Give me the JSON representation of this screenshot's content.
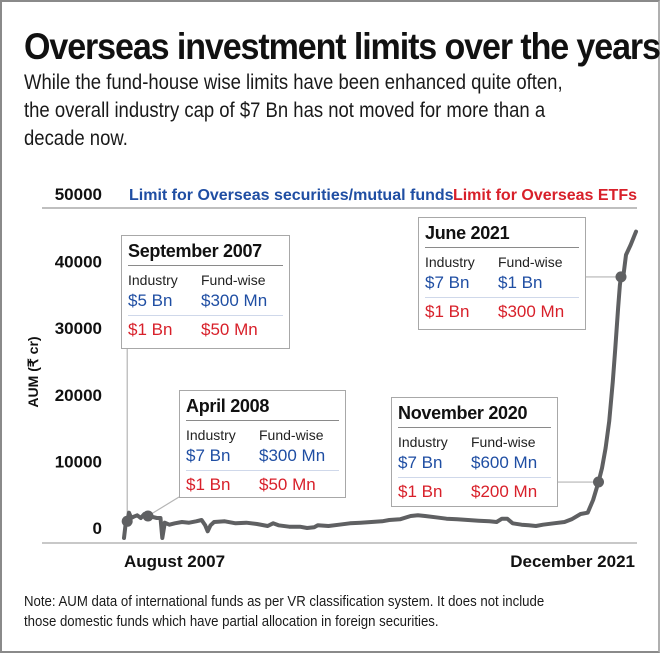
{
  "header": {
    "title": "Overseas investment limits over the years",
    "subtitle_lines": [
      "While the fund-house wise limits have been enhanced quite often,",
      "the overall industry cap of $7 Bn has not moved for more than a",
      "decade now."
    ]
  },
  "legend": {
    "mutual_funds": "Limit for Overseas securities/mutual funds",
    "etfs": "Limit for Overseas ETFs"
  },
  "colors": {
    "mutual_funds": "#1f4ea3",
    "etfs": "#d8202a",
    "series": "#5f6062"
  },
  "callouts": [
    {
      "title": "September 2007",
      "col1": "Industry",
      "col2": "Fund-wise",
      "mf_industry": "$5 Bn",
      "mf_fund": "$300 Mn",
      "etf_industry": "$1 Bn",
      "etf_fund": "$50 Mn"
    },
    {
      "title": "April 2008",
      "col1": "Industry",
      "col2": "Fund-wise",
      "mf_industry": "$7 Bn",
      "mf_fund": "$300 Mn",
      "etf_industry": "$1 Bn",
      "etf_fund": "$50 Mn"
    },
    {
      "title": "June 2021",
      "col1": "Industry",
      "col2": "Fund-wise",
      "mf_industry": "$7 Bn",
      "mf_fund": "$1 Bn",
      "etf_industry": "$1 Bn",
      "etf_fund": "$300 Mn"
    },
    {
      "title": "November 2020",
      "col1": "Industry",
      "col2": "Fund-wise",
      "mf_industry": "$7 Bn",
      "mf_fund": "$600 Mn",
      "etf_industry": "$1 Bn",
      "etf_fund": "$200 Mn"
    }
  ],
  "note_lines": [
    "Note: AUM data of international funds as per VR classification system. It does not include",
    "those domestic funds which have partial allocation in foreign securities."
  ],
  "chart_data": {
    "type": "line",
    "title": "Overseas investment limits over the years",
    "xlabel": "",
    "ylabel": "AUM (₹ cr)",
    "x_start_label": "August 2007",
    "x_end_label": "December 2021",
    "x_range": [
      "2007-08",
      "2021-12"
    ],
    "ylim": [
      0,
      50000
    ],
    "yticks": [
      0,
      10000,
      20000,
      30000,
      40000,
      50000
    ],
    "ytick_labels": [
      "0",
      "10000",
      "20000",
      "30000",
      "40000",
      "50000"
    ],
    "grid": false,
    "series": [
      {
        "name": "AUM of international funds",
        "points": [
          [
            2007.58,
            -1500
          ],
          [
            2007.62,
            300
          ],
          [
            2007.67,
            1000
          ],
          [
            2007.72,
            2300
          ],
          [
            2007.78,
            1500
          ],
          [
            2007.85,
            1700
          ],
          [
            2007.95,
            1900
          ],
          [
            2008.05,
            1500
          ],
          [
            2008.15,
            2100
          ],
          [
            2008.25,
            1800
          ],
          [
            2008.35,
            1700
          ],
          [
            2008.5,
            1500
          ],
          [
            2008.6,
            1500
          ],
          [
            2008.65,
            -1500
          ],
          [
            2008.72,
            800
          ],
          [
            2008.85,
            500
          ],
          [
            2009.0,
            700
          ],
          [
            2009.2,
            900
          ],
          [
            2009.4,
            800
          ],
          [
            2009.6,
            1000
          ],
          [
            2009.75,
            1200
          ],
          [
            2009.85,
            400
          ],
          [
            2009.92,
            -500
          ],
          [
            2010.0,
            400
          ],
          [
            2010.1,
            900
          ],
          [
            2010.4,
            1000
          ],
          [
            2010.7,
            700
          ],
          [
            2011.0,
            800
          ],
          [
            2011.3,
            600
          ],
          [
            2011.6,
            300
          ],
          [
            2011.75,
            700
          ],
          [
            2011.9,
            400
          ],
          [
            2012.2,
            200
          ],
          [
            2012.5,
            200
          ],
          [
            2012.7,
            0
          ],
          [
            2012.9,
            100
          ],
          [
            2013.0,
            400
          ],
          [
            2013.3,
            300
          ],
          [
            2013.6,
            500
          ],
          [
            2013.9,
            700
          ],
          [
            2014.2,
            800
          ],
          [
            2014.5,
            900
          ],
          [
            2014.8,
            1000
          ],
          [
            2015.0,
            1200
          ],
          [
            2015.3,
            1300
          ],
          [
            2015.6,
            1800
          ],
          [
            2015.8,
            1900
          ],
          [
            2016.0,
            1800
          ],
          [
            2016.3,
            1600
          ],
          [
            2016.6,
            1400
          ],
          [
            2016.9,
            1300
          ],
          [
            2017.2,
            1200
          ],
          [
            2017.5,
            1100
          ],
          [
            2017.8,
            1000
          ],
          [
            2018.0,
            900
          ],
          [
            2018.15,
            1400
          ],
          [
            2018.3,
            1400
          ],
          [
            2018.45,
            700
          ],
          [
            2018.7,
            500
          ],
          [
            2018.9,
            400
          ],
          [
            2019.1,
            300
          ],
          [
            2019.3,
            500
          ],
          [
            2019.6,
            700
          ],
          [
            2019.9,
            900
          ],
          [
            2020.1,
            1300
          ],
          [
            2020.35,
            2100
          ],
          [
            2020.55,
            2300
          ],
          [
            2020.7,
            4200
          ],
          [
            2020.85,
            6900
          ],
          [
            2020.95,
            9000
          ],
          [
            2021.05,
            12000
          ],
          [
            2021.15,
            16000
          ],
          [
            2021.25,
            22000
          ],
          [
            2021.32,
            27000
          ],
          [
            2021.4,
            33000
          ],
          [
            2021.45,
            36500
          ],
          [
            2021.48,
            37700
          ],
          [
            2021.55,
            38000
          ],
          [
            2021.62,
            41000
          ],
          [
            2021.75,
            42500
          ],
          [
            2021.9,
            44500
          ]
        ]
      }
    ],
    "markers": [
      {
        "label": "September 2007",
        "x": 2007.67,
        "y": 1000
      },
      {
        "label": "April 2008",
        "x": 2008.25,
        "y": 1800
      },
      {
        "label": "November 2020",
        "x": 2020.85,
        "y": 6900
      },
      {
        "label": "June 2021",
        "x": 2021.48,
        "y": 37700
      }
    ]
  }
}
